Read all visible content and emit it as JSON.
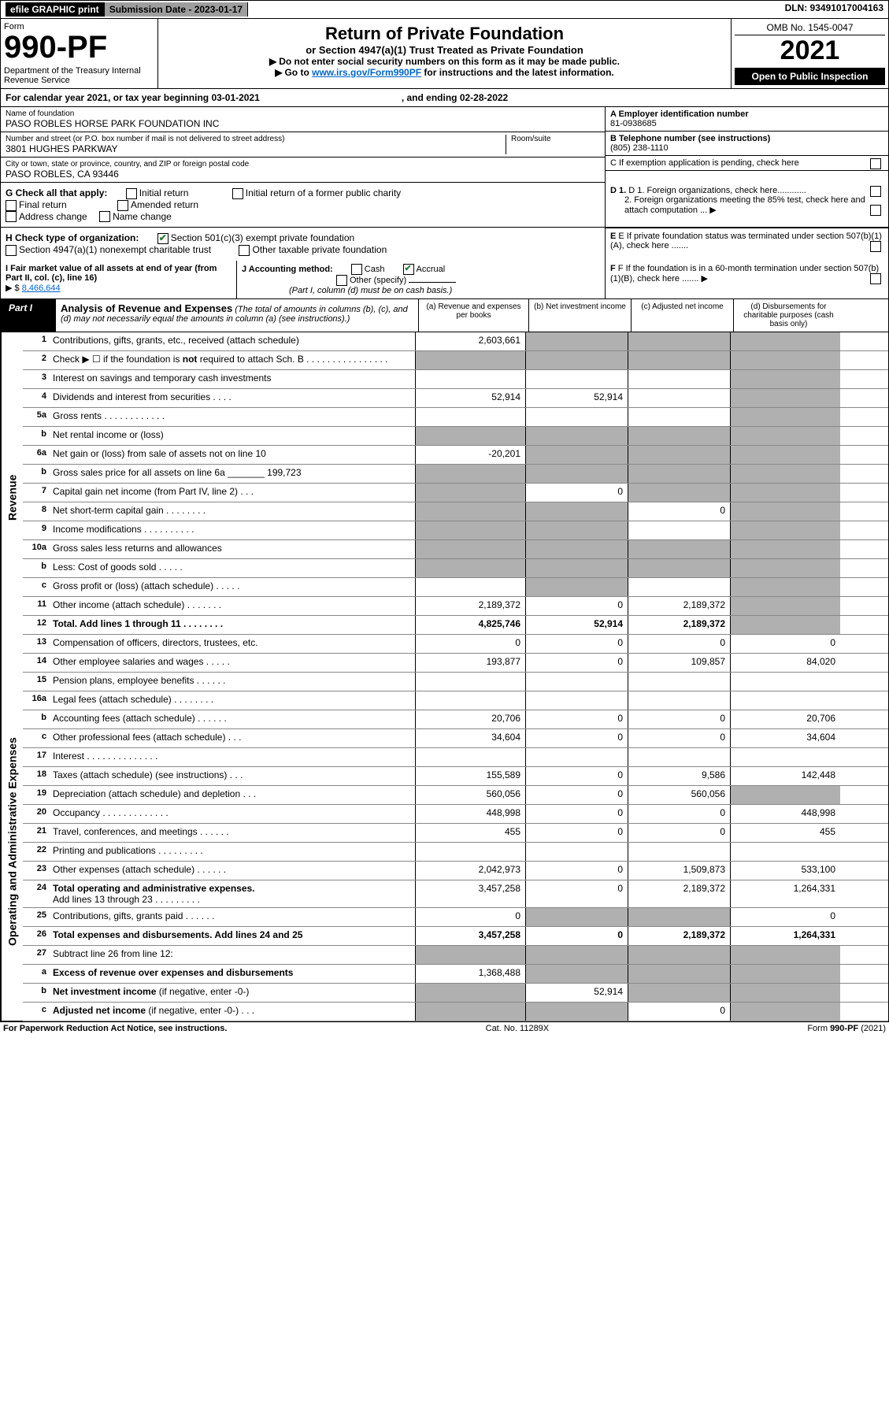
{
  "top": {
    "efile": "efile GRAPHIC print",
    "submission": "Submission Date - 2023-01-17",
    "dln": "DLN: 93491017004163"
  },
  "header": {
    "form_label": "Form",
    "form_no": "990-PF",
    "dept": "Department of the Treasury\nInternal Revenue Service",
    "title": "Return of Private Foundation",
    "subtitle": "or Section 4947(a)(1) Trust Treated as Private Foundation",
    "instr1": "Do not enter social security numbers on this form as it may be made public.",
    "instr2_pre": "Go to ",
    "instr2_link": "www.irs.gov/Form990PF",
    "instr2_post": " for instructions and the latest information.",
    "omb": "OMB No. 1545-0047",
    "year": "2021",
    "open": "Open to Public Inspection"
  },
  "calendar": {
    "text": "For calendar year 2021, or tax year beginning 03-01-2021",
    "ending": ", and ending 02-28-2022"
  },
  "info": {
    "name_label": "Name of foundation",
    "name": "PASO ROBLES HORSE PARK FOUNDATION INC",
    "addr_label": "Number and street (or P.O. box number if mail is not delivered to street address)",
    "addr": "3801 HUGHES PARKWAY",
    "room_label": "Room/suite",
    "city_label": "City or town, state or province, country, and ZIP or foreign postal code",
    "city": "PASO ROBLES, CA  93446",
    "a_label": "A Employer identification number",
    "a_val": "81-0938685",
    "b_label": "B Telephone number (see instructions)",
    "b_val": "(805) 238-1110",
    "c_label": "C If exemption application is pending, check here"
  },
  "checks": {
    "g_label": "G Check all that apply:",
    "initial": "Initial return",
    "final": "Final return",
    "addr_change": "Address change",
    "initial_former": "Initial return of a former public charity",
    "amended": "Amended return",
    "name_change": "Name change",
    "h_label": "H Check type of organization:",
    "h_501c3": "Section 501(c)(3) exempt private foundation",
    "h_4947": "Section 4947(a)(1) nonexempt charitable trust",
    "h_other_tax": "Other taxable private foundation",
    "d1": "D 1. Foreign organizations, check here............",
    "d2": "2. Foreign organizations meeting the 85% test, check here and attach computation ...",
    "e": "E If private foundation status was terminated under section 507(b)(1)(A), check here .......",
    "i_label": "I Fair market value of all assets at end of year (from Part II, col. (c), line 16)",
    "i_val": "8,466,644",
    "j_label": "J Accounting method:",
    "j_cash": "Cash",
    "j_accrual": "Accrual",
    "j_other": "Other (specify)",
    "j_note": "(Part I, column (d) must be on cash basis.)",
    "f": "F If the foundation is in a 60-month termination under section 507(b)(1)(B), check here ......."
  },
  "part1": {
    "label": "Part I",
    "title": "Analysis of Revenue and Expenses",
    "title_note": "(The total of amounts in columns (b), (c), and (d) may not necessarily equal the amounts in column (a) (see instructions).)",
    "col_a": "(a) Revenue and expenses per books",
    "col_b": "(b) Net investment income",
    "col_c": "(c) Adjusted net income",
    "col_d": "(d) Disbursements for charitable purposes (cash basis only)"
  },
  "side_labels": {
    "revenue": "Revenue",
    "expenses": "Operating and Administrative Expenses"
  },
  "rows": [
    {
      "n": "1",
      "desc": "Contributions, gifts, grants, etc., received (attach schedule)",
      "a": "2,603,661",
      "b": "",
      "c": "",
      "d": "",
      "shade_b": true,
      "shade_c": true,
      "shade_d": true
    },
    {
      "n": "2",
      "desc": "Check ▶ ☐ if the foundation is <b>not</b> required to attach Sch. B    . . . . . . . . . . . . . . . .",
      "a": "",
      "b": "",
      "c": "",
      "d": "",
      "shade_all": true
    },
    {
      "n": "3",
      "desc": "Interest on savings and temporary cash investments",
      "a": "",
      "b": "",
      "c": "",
      "d": "",
      "shade_d": true
    },
    {
      "n": "4",
      "desc": "Dividends and interest from securities    . . . .",
      "a": "52,914",
      "b": "52,914",
      "c": "",
      "d": "",
      "shade_d": true
    },
    {
      "n": "5a",
      "desc": "Gross rents    . . . . . . . . . . . .",
      "a": "",
      "b": "",
      "c": "",
      "d": "",
      "shade_d": true
    },
    {
      "n": "b",
      "desc": "Net rental income or (loss)",
      "a": "",
      "b": "",
      "c": "",
      "d": "",
      "shade_all": true
    },
    {
      "n": "6a",
      "desc": "Net gain or (loss) from sale of assets not on line 10",
      "a": "-20,201",
      "b": "",
      "c": "",
      "d": "",
      "shade_b": true,
      "shade_c": true,
      "shade_d": true
    },
    {
      "n": "b",
      "desc": "Gross sales price for all assets on line 6a _______ 199,723",
      "a": "",
      "b": "",
      "c": "",
      "d": "",
      "shade_all": true
    },
    {
      "n": "7",
      "desc": "Capital gain net income (from Part IV, line 2)   . . .",
      "a": "",
      "b": "0",
      "c": "",
      "d": "",
      "shade_a": true,
      "shade_c": true,
      "shade_d": true
    },
    {
      "n": "8",
      "desc": "Net short-term capital gain   . . . . . . . .",
      "a": "",
      "b": "",
      "c": "0",
      "d": "",
      "shade_a": true,
      "shade_b": true,
      "shade_d": true
    },
    {
      "n": "9",
      "desc": "Income modifications   . . . . . . . . . .",
      "a": "",
      "b": "",
      "c": "",
      "d": "",
      "shade_a": true,
      "shade_b": true,
      "shade_d": true
    },
    {
      "n": "10a",
      "desc": "Gross sales less returns and allowances",
      "a": "",
      "b": "",
      "c": "",
      "d": "",
      "shade_all": true
    },
    {
      "n": "b",
      "desc": "Less: Cost of goods sold    . . . . .",
      "a": "",
      "b": "",
      "c": "",
      "d": "",
      "shade_all": true
    },
    {
      "n": "c",
      "desc": "Gross profit or (loss) (attach schedule)    . . . . .",
      "a": "",
      "b": "",
      "c": "",
      "d": "",
      "shade_b": true,
      "shade_d": true
    },
    {
      "n": "11",
      "desc": "Other income (attach schedule)   . . . . . . .",
      "a": "2,189,372",
      "b": "0",
      "c": "2,189,372",
      "d": "",
      "shade_d": true
    },
    {
      "n": "12",
      "desc": "<b>Total.</b> Add lines 1 through 11   . . . . . . . .",
      "a": "4,825,746",
      "b": "52,914",
      "c": "2,189,372",
      "d": "",
      "shade_d": true,
      "section_end": true
    },
    {
      "n": "13",
      "desc": "Compensation of officers, directors, trustees, etc.",
      "a": "0",
      "b": "0",
      "c": "0",
      "d": "0"
    },
    {
      "n": "14",
      "desc": "Other employee salaries and wages   . . . . .",
      "a": "193,877",
      "b": "0",
      "c": "109,857",
      "d": "84,020"
    },
    {
      "n": "15",
      "desc": "Pension plans, employee benefits   . . . . . .",
      "a": "",
      "b": "",
      "c": "",
      "d": ""
    },
    {
      "n": "16a",
      "desc": "Legal fees (attach schedule)   . . . . . . . .",
      "a": "",
      "b": "",
      "c": "",
      "d": ""
    },
    {
      "n": "b",
      "desc": "Accounting fees (attach schedule)   . . . . . .",
      "a": "20,706",
      "b": "0",
      "c": "0",
      "d": "20,706"
    },
    {
      "n": "c",
      "desc": "Other professional fees (attach schedule)    . . .",
      "a": "34,604",
      "b": "0",
      "c": "0",
      "d": "34,604"
    },
    {
      "n": "17",
      "desc": "Interest   . . . . . . . . . . . . . .",
      "a": "",
      "b": "",
      "c": "",
      "d": ""
    },
    {
      "n": "18",
      "desc": "Taxes (attach schedule) (see instructions)    . . .",
      "a": "155,589",
      "b": "0",
      "c": "9,586",
      "d": "142,448"
    },
    {
      "n": "19",
      "desc": "Depreciation (attach schedule) and depletion   . . .",
      "a": "560,056",
      "b": "0",
      "c": "560,056",
      "d": "",
      "shade_d": true
    },
    {
      "n": "20",
      "desc": "Occupancy   . . . . . . . . . . . . .",
      "a": "448,998",
      "b": "0",
      "c": "0",
      "d": "448,998"
    },
    {
      "n": "21",
      "desc": "Travel, conferences, and meetings   . . . . . .",
      "a": "455",
      "b": "0",
      "c": "0",
      "d": "455"
    },
    {
      "n": "22",
      "desc": "Printing and publications   . . . . . . . . .",
      "a": "",
      "b": "",
      "c": "",
      "d": ""
    },
    {
      "n": "23",
      "desc": "Other expenses (attach schedule)   . . . . . .",
      "a": "2,042,973",
      "b": "0",
      "c": "1,509,873",
      "d": "533,100"
    },
    {
      "n": "24",
      "desc": "<b>Total operating and administrative expenses.</b><br>Add lines 13 through 23   . . . . . . . . .",
      "a": "3,457,258",
      "b": "0",
      "c": "2,189,372",
      "d": "1,264,331"
    },
    {
      "n": "25",
      "desc": "Contributions, gifts, grants paid    . . . . . .",
      "a": "0",
      "b": "",
      "c": "",
      "d": "0",
      "shade_b": true,
      "shade_c": true
    },
    {
      "n": "26",
      "desc": "<b>Total expenses and disbursements.</b> Add lines 24 and 25",
      "a": "3,457,258",
      "b": "0",
      "c": "2,189,372",
      "d": "1,264,331",
      "section_end": true
    },
    {
      "n": "27",
      "desc": "Subtract line 26 from line 12:",
      "a": "",
      "b": "",
      "c": "",
      "d": "",
      "shade_all": true
    },
    {
      "n": "a",
      "desc": "<b>Excess of revenue over expenses and disbursements</b>",
      "a": "1,368,488",
      "b": "",
      "c": "",
      "d": "",
      "shade_b": true,
      "shade_c": true,
      "shade_d": true
    },
    {
      "n": "b",
      "desc": "<b>Net investment income</b> (if negative, enter -0-)",
      "a": "",
      "b": "52,914",
      "c": "",
      "d": "",
      "shade_a": true,
      "shade_c": true,
      "shade_d": true
    },
    {
      "n": "c",
      "desc": "<b>Adjusted net income</b> (if negative, enter -0-)   . . .",
      "a": "",
      "b": "",
      "c": "0",
      "d": "",
      "shade_a": true,
      "shade_b": true,
      "shade_d": true
    }
  ],
  "footer": {
    "left": "For Paperwork Reduction Act Notice, see instructions.",
    "mid": "Cat. No. 11289X",
    "right": "Form 990-PF (2021)"
  }
}
